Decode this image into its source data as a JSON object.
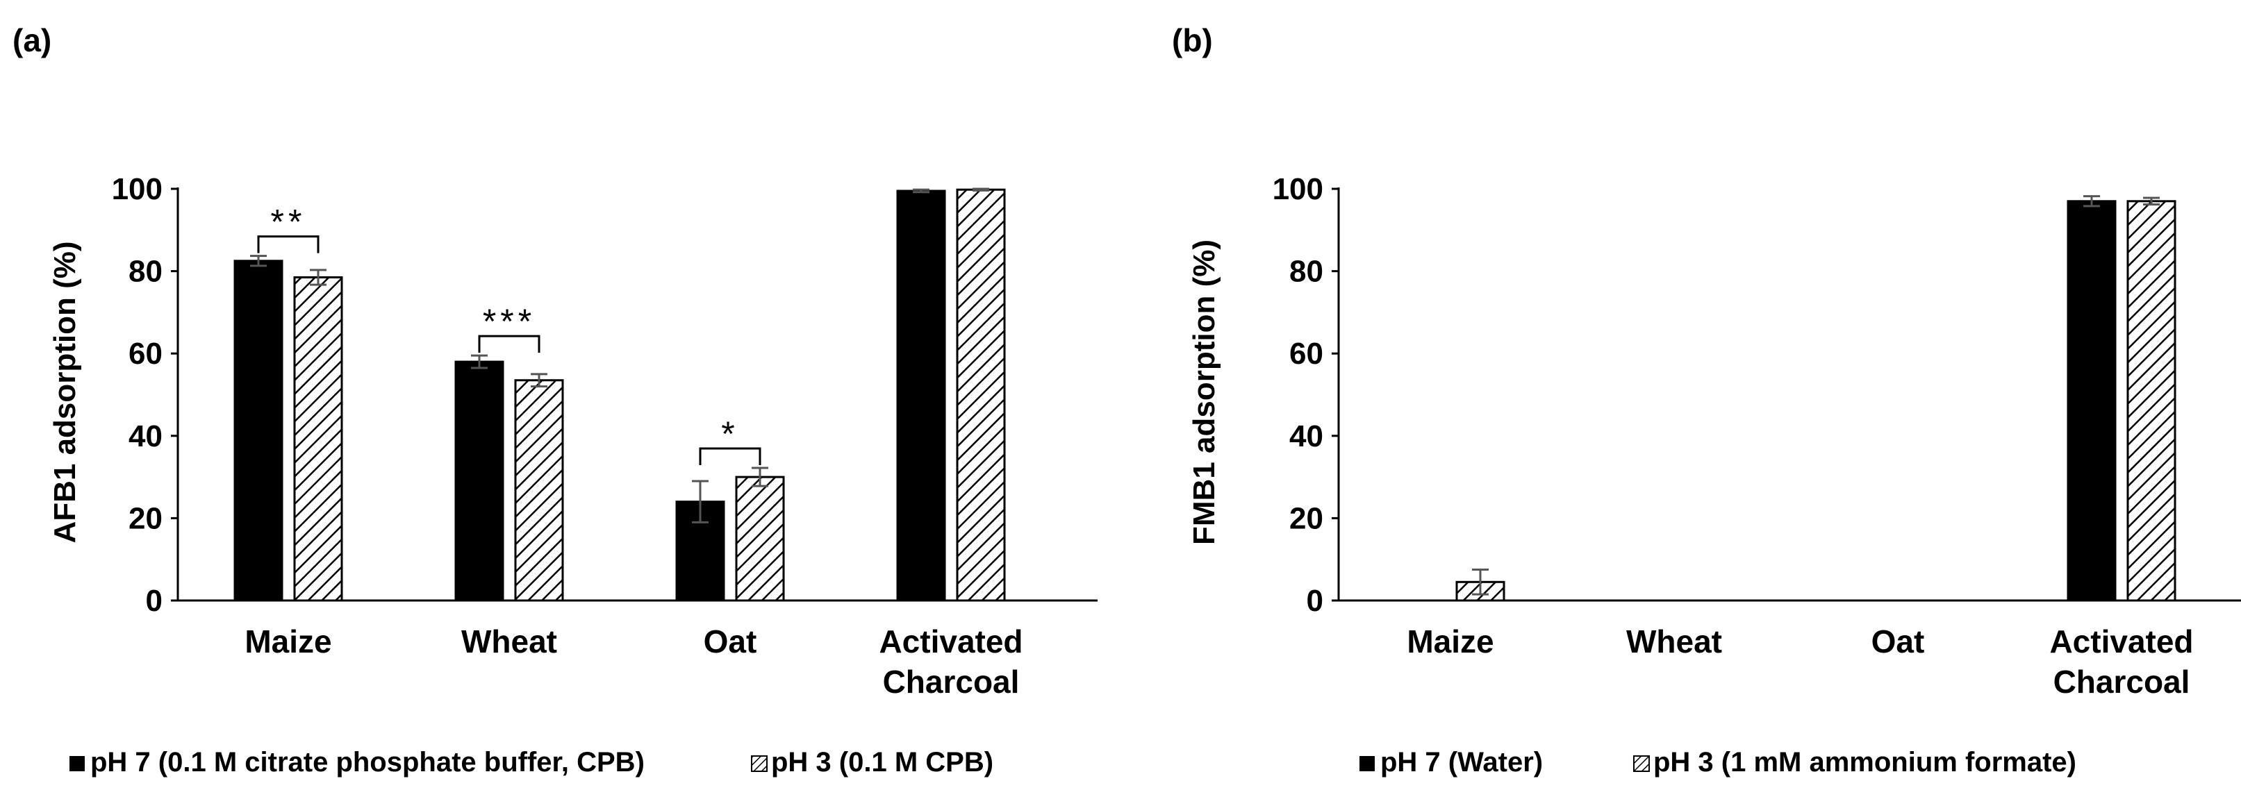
{
  "panels": [
    {
      "label": "(a)",
      "chart_data": {
        "type": "bar",
        "title": "",
        "xlabel": "",
        "ylabel": "AFB1 adsorption (%)",
        "ylim": [
          0,
          100
        ],
        "yticks": [
          "0",
          "20",
          "40",
          "60",
          "80",
          "100"
        ],
        "grid": false,
        "categories": [
          [
            "Maize"
          ],
          [
            "Wheat"
          ],
          [
            "Oat"
          ],
          [
            "Activated",
            "Charcoal"
          ]
        ],
        "series": [
          {
            "name": "pH 7 (0.1 M citrate phosphate buffer, CPB)",
            "pattern": "solid",
            "values": [
              82.5,
              58,
              24,
              99.5
            ],
            "errors": [
              1.2,
              1.5,
              5,
              0.3
            ]
          },
          {
            "name": "pH 3 (0.1 M  CPB)",
            "pattern": "hatched",
            "values": [
              78.5,
              53.5,
              30,
              99.8
            ],
            "errors": [
              1.8,
              1.5,
              2.2,
              0.2
            ]
          }
        ],
        "significance": [
          "**",
          "***",
          "*",
          ""
        ],
        "legend_position": "bottom"
      }
    },
    {
      "label": "(b)",
      "chart_data": {
        "type": "bar",
        "title": "",
        "xlabel": "",
        "ylabel": "FMB1 adsorption (%)",
        "ylim": [
          0,
          100
        ],
        "yticks": [
          "0",
          "20",
          "40",
          "60",
          "80",
          "100"
        ],
        "grid": false,
        "categories": [
          [
            "Maize"
          ],
          [
            "Wheat"
          ],
          [
            "Oat"
          ],
          [
            "Activated",
            "Charcoal"
          ]
        ],
        "series": [
          {
            "name": "pH 7 (Water)",
            "pattern": "solid",
            "values": [
              0,
              0,
              0,
              97
            ],
            "errors": [
              0,
              0,
              0,
              1.2
            ]
          },
          {
            "name": "pH 3 (1 mM ammonium formate)",
            "pattern": "hatched",
            "values": [
              4.5,
              0,
              0,
              97
            ],
            "errors": [
              3,
              0,
              0,
              0.8
            ]
          }
        ],
        "significance": [
          "",
          "",
          "",
          ""
        ],
        "legend_position": "bottom"
      }
    }
  ]
}
